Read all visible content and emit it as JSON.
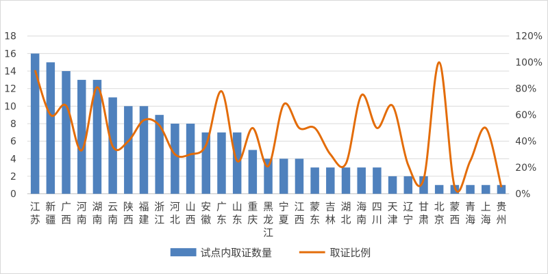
{
  "chart_data": {
    "type": "bar+line",
    "categories": [
      "江苏",
      "新疆",
      "广西",
      "河南",
      "湖南",
      "云南",
      "陕西",
      "福建",
      "浙江",
      "河北",
      "山西",
      "安徽",
      "广东",
      "山东",
      "重庆",
      "黑龙江",
      "宁夏",
      "江西",
      "蒙东",
      "吉林",
      "湖北",
      "海南",
      "四川",
      "天津",
      "辽宁",
      "甘肃",
      "北京",
      "蒙西",
      "青海",
      "上海",
      "贵州"
    ],
    "category_labels": [
      [
        "江",
        "苏"
      ],
      [
        "新",
        "疆"
      ],
      [
        "广",
        "西"
      ],
      [
        "河",
        "南"
      ],
      [
        "湖",
        "南"
      ],
      [
        "云",
        "南"
      ],
      [
        "陕",
        "西"
      ],
      [
        "福",
        "建"
      ],
      [
        "浙",
        "江"
      ],
      [
        "河",
        "北"
      ],
      [
        "山",
        "西"
      ],
      [
        "安",
        "徽"
      ],
      [
        "广",
        "东"
      ],
      [
        "山",
        "东"
      ],
      [
        "重",
        "庆"
      ],
      [
        "黑",
        "龙",
        "江"
      ],
      [
        "宁",
        "夏"
      ],
      [
        "江",
        "西"
      ],
      [
        "蒙",
        "东"
      ],
      [
        "吉",
        "林"
      ],
      [
        "湖",
        "北"
      ],
      [
        "海",
        "南"
      ],
      [
        "四",
        "川"
      ],
      [
        "天",
        "津"
      ],
      [
        "辽",
        "宁"
      ],
      [
        "甘",
        "肃"
      ],
      [
        "北",
        "京"
      ],
      [
        "蒙",
        "西"
      ],
      [
        "青",
        "海"
      ],
      [
        "上",
        "海"
      ],
      [
        "贵",
        "州"
      ]
    ],
    "series": [
      {
        "name": "试点内取证数量",
        "type": "bar",
        "axis": "left",
        "color": "#4f81bd",
        "values": [
          16,
          15,
          14,
          13,
          13,
          11,
          10,
          10,
          9,
          8,
          8,
          7,
          7,
          7,
          5,
          4,
          4,
          4,
          3,
          3,
          3,
          3,
          3,
          2,
          2,
          2,
          1,
          1,
          1,
          1,
          1
        ]
      },
      {
        "name": "取证比例",
        "type": "line",
        "axis": "right",
        "color": "#e36c09",
        "smooth": true,
        "values": [
          94,
          60,
          67,
          33,
          81,
          36,
          40,
          56,
          52,
          30,
          30,
          37,
          78,
          25,
          50,
          21,
          68,
          50,
          50,
          30,
          23,
          75,
          50,
          67,
          22,
          11,
          100,
          5,
          25,
          50,
          5
        ]
      }
    ],
    "left_axis": {
      "min": 0,
      "max": 18,
      "ticks": [
        "0",
        "2",
        "4",
        "6",
        "8",
        "10",
        "12",
        "14",
        "16",
        "18"
      ]
    },
    "right_axis": {
      "min": 0,
      "max": 120,
      "ticks": [
        "0%",
        "20%",
        "40%",
        "60%",
        "80%",
        "100%",
        "120%"
      ]
    },
    "grid": true,
    "legend": "bottom"
  }
}
